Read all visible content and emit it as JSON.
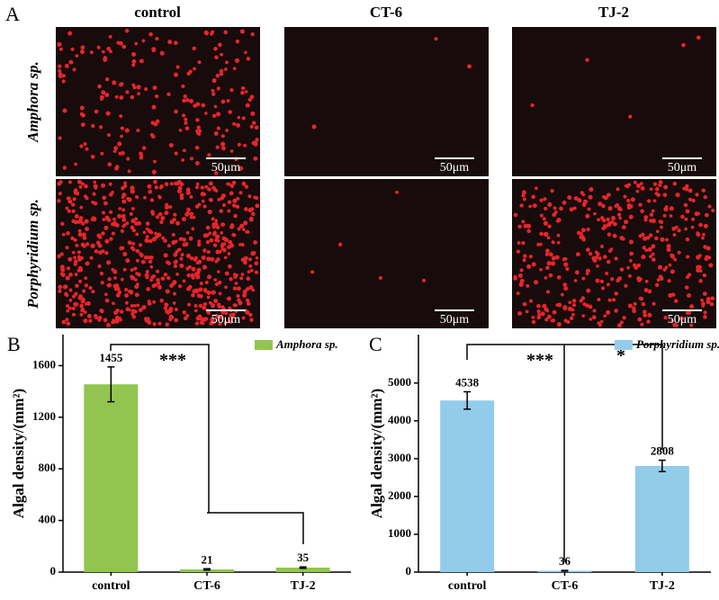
{
  "image_panel": {
    "label": "A",
    "columns": [
      "control",
      "CT-6",
      "TJ-2"
    ],
    "rows": [
      "Amphora sp.",
      "Porphyridium sp."
    ],
    "scale_bar": "50μm"
  },
  "chart_data": [
    {
      "type": "bar",
      "label": "B",
      "ylabel": "Algal density/(mm²)",
      "categories": [
        "control",
        "CT-6",
        "TJ-2"
      ],
      "series": [
        {
          "name": "Amphora sp.",
          "color": "#92c550",
          "values": [
            1455,
            21,
            35
          ],
          "errors": [
            135,
            5,
            5
          ]
        }
      ],
      "ylim": [
        0,
        1840
      ],
      "yticks": [
        0,
        400,
        800,
        1200,
        1600
      ],
      "legend": "upper right",
      "annotations": [
        "***"
      ]
    },
    {
      "type": "bar",
      "label": "C",
      "ylabel": "Algal density/(mm²)",
      "categories": [
        "control",
        "CT-6",
        "TJ-2"
      ],
      "series": [
        {
          "name": "Porphyridium sp.",
          "color": "#93cbea",
          "values": [
            4538,
            36,
            2808
          ],
          "errors": [
            230,
            10,
            150
          ]
        }
      ],
      "ylim": [
        0,
        6280
      ],
      "yticks": [
        0,
        1000,
        2000,
        3000,
        4000,
        5000
      ],
      "legend": "upper right",
      "annotations": [
        "***",
        "*"
      ]
    }
  ]
}
